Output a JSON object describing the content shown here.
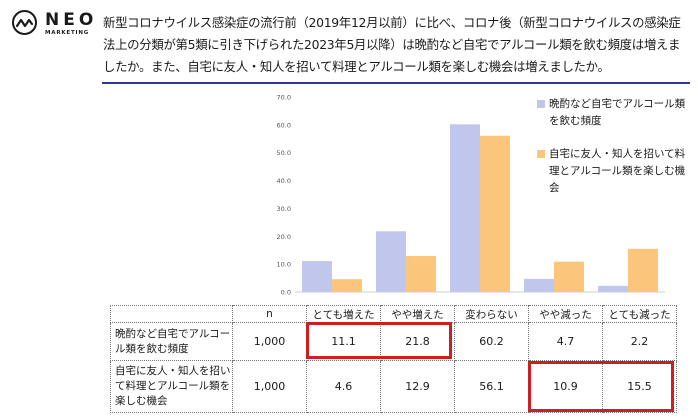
{
  "logo": {
    "name": "NEO",
    "sub": "MARKETING"
  },
  "question": "新型コロナウイルス感染症の流行前（2019年12月以前）に比べ、コロナ後（新型コロナウイルスの感染症法上の分類が第5類に引き下げられた2023年5月以降）は晩酌など自宅でアルコール類を飲む頻度は増えましたか。また、自宅に友人・知人を招いて料理とアルコール類を楽しむ機会は増えましたか。",
  "colors": {
    "series1": "#c1c7ec",
    "series2": "#fbc57b",
    "rule": "#2b3a8a",
    "highlight": "#cc1f1f"
  },
  "chart_data": {
    "type": "bar",
    "categories": [
      "とても増えた",
      "やや増えた",
      "変わらない",
      "やや減った",
      "とても減った"
    ],
    "series": [
      {
        "name": "晩酌など自宅でアルコール類を飲む頻度",
        "values": [
          11.1,
          21.8,
          60.2,
          4.7,
          2.2
        ]
      },
      {
        "name": "自宅に友人・知人を招いて料理とアルコール類を楽しむ機会",
        "values": [
          4.6,
          12.9,
          56.1,
          10.9,
          15.5
        ]
      }
    ],
    "ylim": [
      0,
      70
    ],
    "yticks": [
      "0.0",
      "10.0",
      "20.0",
      "30.0",
      "40.0",
      "50.0",
      "60.0",
      "70.0"
    ],
    "legend": "right"
  },
  "table": {
    "n_header": "n",
    "headers": [
      "とても増えた",
      "やや増えた",
      "変わらない",
      "やや減った",
      "とても減った"
    ],
    "rows": [
      {
        "label": "晩酌など自宅でアルコール類を飲む頻度",
        "n": "1,000",
        "values": [
          "11.1",
          "21.8",
          "60.2",
          "4.7",
          "2.2"
        ]
      },
      {
        "label": "自宅に友人・知人を招いて料理とアルコール類を楽しむ機会",
        "n": "1,000",
        "values": [
          "4.6",
          "12.9",
          "56.1",
          "10.9",
          "15.5"
        ]
      }
    ]
  }
}
